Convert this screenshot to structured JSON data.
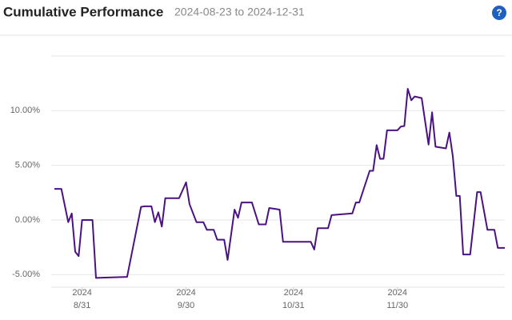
{
  "chart_data": {
    "type": "line",
    "title": "Cumulative Performance",
    "subtitle": "2024-08-23 to 2024-12-31",
    "help_icon": "?",
    "color": "#4b1282",
    "x": [
      "2024-08-23",
      "2024-08-25",
      "2024-08-27",
      "2024-08-28",
      "2024-08-29",
      "2024-08-30",
      "2024-08-31",
      "2024-09-03",
      "2024-09-04",
      "2024-09-13",
      "2024-09-17",
      "2024-09-18",
      "2024-09-20",
      "2024-09-21",
      "2024-09-22",
      "2024-09-23",
      "2024-09-24",
      "2024-09-28",
      "2024-09-30",
      "2024-10-01",
      "2024-10-03",
      "2024-10-05",
      "2024-10-06",
      "2024-10-08",
      "2024-10-09",
      "2024-10-11",
      "2024-10-12",
      "2024-10-14",
      "2024-10-15",
      "2024-10-16",
      "2024-10-19",
      "2024-10-21",
      "2024-10-23",
      "2024-10-24",
      "2024-10-27",
      "2024-10-28",
      "2024-11-05",
      "2024-11-06",
      "2024-11-07",
      "2024-11-10",
      "2024-11-11",
      "2024-11-17",
      "2024-11-18",
      "2024-11-19",
      "2024-11-22",
      "2024-11-23",
      "2024-11-24",
      "2024-11-25",
      "2024-11-26",
      "2024-11-27",
      "2024-11-30",
      "2024-12-01",
      "2024-12-02",
      "2024-12-03",
      "2024-12-04",
      "2024-12-05",
      "2024-12-07",
      "2024-12-09",
      "2024-12-10",
      "2024-12-11",
      "2024-12-14",
      "2024-12-15",
      "2024-12-16",
      "2024-12-17",
      "2024-12-18",
      "2024-12-19",
      "2024-12-21",
      "2024-12-23",
      "2024-12-24",
      "2024-12-26",
      "2024-12-28",
      "2024-12-29",
      "2024-12-31"
    ],
    "values": [
      2.85,
      2.85,
      -0.2,
      0.6,
      -2.9,
      -3.3,
      0.0,
      0.0,
      -5.3,
      -5.2,
      1.2,
      1.25,
      1.25,
      -0.2,
      0.7,
      -0.6,
      2.0,
      2.0,
      3.45,
      1.45,
      -0.2,
      -0.2,
      -0.9,
      -0.9,
      -1.8,
      -1.8,
      -3.65,
      0.95,
      0.2,
      1.6,
      1.6,
      -0.4,
      -0.4,
      1.1,
      0.95,
      -2.0,
      -2.0,
      -2.7,
      -0.75,
      -0.75,
      0.45,
      0.6,
      1.6,
      1.6,
      4.5,
      4.5,
      6.85,
      5.6,
      5.6,
      8.2,
      8.2,
      8.55,
      8.6,
      12.0,
      10.95,
      11.3,
      11.15,
      6.9,
      9.85,
      6.7,
      6.55,
      8.0,
      5.85,
      2.2,
      2.2,
      -3.15,
      -3.15,
      2.55,
      2.55,
      -0.9,
      -0.9,
      -2.55,
      -2.55
    ],
    "ylim": [
      -6,
      15
    ],
    "yticks": [
      {
        "value": -5,
        "label": "-5.00%"
      },
      {
        "value": 0,
        "label": "0.00%"
      },
      {
        "value": 5,
        "label": "5.00%"
      },
      {
        "value": 10,
        "label": "10.00%"
      }
    ],
    "xlim": [
      "2024-08-23",
      "2024-12-31"
    ],
    "xticks": [
      {
        "value": "2024-08-31",
        "year": "2024",
        "label": "8/31"
      },
      {
        "value": "2024-09-30",
        "year": "2024",
        "label": "9/30"
      },
      {
        "value": "2024-10-31",
        "year": "2024",
        "label": "10/31"
      },
      {
        "value": "2024-11-30",
        "year": "2024",
        "label": "11/30"
      }
    ],
    "grid": true
  }
}
